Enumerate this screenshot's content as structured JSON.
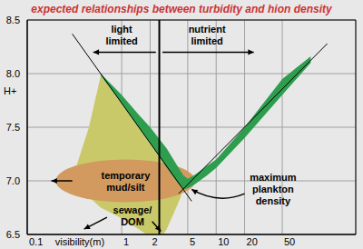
{
  "chart_data": {
    "type": "area",
    "title": "expected relationships between turbidity and hion density",
    "x_label": "visibility(m)",
    "y_label": "H+",
    "log": "x",
    "grid": true,
    "xlim": [
      0.1,
      300
    ],
    "xticks": [
      0.1,
      1,
      2,
      5,
      10,
      20,
      50
    ],
    "ylim": [
      6.5,
      8.5
    ],
    "yticks": [
      6.5,
      {
        "value": 7,
        "label": "7.0"
      },
      7.5,
      {
        "value": 8,
        "label": "8.0"
      },
      8.5
    ],
    "regions": [
      {
        "color": "#c9c96a",
        "x": [
          0.3,
          0.45,
          0.6,
          1,
          1.5,
          2,
          2.5,
          3,
          4,
          4.5
        ],
        "low": [
          6.98,
          6.85,
          6.75,
          6.65,
          6.55,
          6.48,
          6.45,
          6.55,
          6.8,
          6.92
        ],
        "high": [
          7.02,
          7.5,
          7.98,
          7.72,
          7.5,
          7.35,
          7.22,
          7.12,
          6.97,
          6.92
        ]
      },
      {
        "color": "#2e9e4e",
        "x": [
          0.6,
          1,
          1.5,
          2,
          3,
          4,
          4.5,
          5,
          6,
          8,
          10,
          20,
          50,
          100
        ],
        "low": [
          7.98,
          7.72,
          7.5,
          7.35,
          7.12,
          6.97,
          6.92,
          6.93,
          6.97,
          7.05,
          7.12,
          7.4,
          7.8,
          8.1
        ],
        "high": [
          8.0,
          7.8,
          7.62,
          7.5,
          7.3,
          7.12,
          7.05,
          7.02,
          7.06,
          7.14,
          7.2,
          7.5,
          7.95,
          8.16
        ]
      }
    ],
    "ellipse": {
      "color": "#d29a5e",
      "x_range": [
        0.2,
        6
      ],
      "y_range": [
        6.8,
        7.2
      ]
    },
    "divider_x": 2.5,
    "trend_lines": [
      {
        "x": [
          0.3,
          5.5
        ],
        "y": [
          8.37,
          6.81
        ]
      },
      {
        "x": [
          4,
          150
        ],
        "y": [
          6.88,
          8.28
        ]
      }
    ],
    "annotations": [
      {
        "text": [
          "light",
          "limited"
        ],
        "x": 1,
        "y": 8.36,
        "arrows": [
          {
            "x": [
              2.3,
              0.5
            ],
            "y": [
              8.2,
              8.2
            ]
          }
        ]
      },
      {
        "text": [
          "nutrient",
          "limited"
        ],
        "x": 8,
        "y": 8.36,
        "arrows": [
          {
            "x": [
              2.7,
              25
            ],
            "y": [
              8.2,
              8.2
            ]
          }
        ]
      },
      {
        "text": [
          "maximum",
          "plankton",
          "density"
        ],
        "x": 40,
        "y": 6.92,
        "arrows": [
          {
            "x": [
              20,
              5.5
            ],
            "y": [
              6.88,
              6.92
            ],
            "line_style": "curved"
          }
        ]
      },
      {
        "text": [
          "temporary",
          "mud/silt"
        ],
        "x": 1.1,
        "y": 7.0,
        "arrows": [
          {
            "x": [
              0.3,
              0.18
            ],
            "y": [
              7.0,
              7.0
            ]
          }
        ]
      },
      {
        "text": [
          "sewage/",
          "DOM"
        ],
        "x": 1.3,
        "y": 6.67,
        "arrows": [
          {
            "x": [
              0.7,
              0.4
            ],
            "y": [
              6.66,
              6.55
            ]
          },
          {
            "x": [
              2.1,
              2.6
            ],
            "y": [
              6.62,
              6.53
            ]
          }
        ]
      }
    ]
  }
}
